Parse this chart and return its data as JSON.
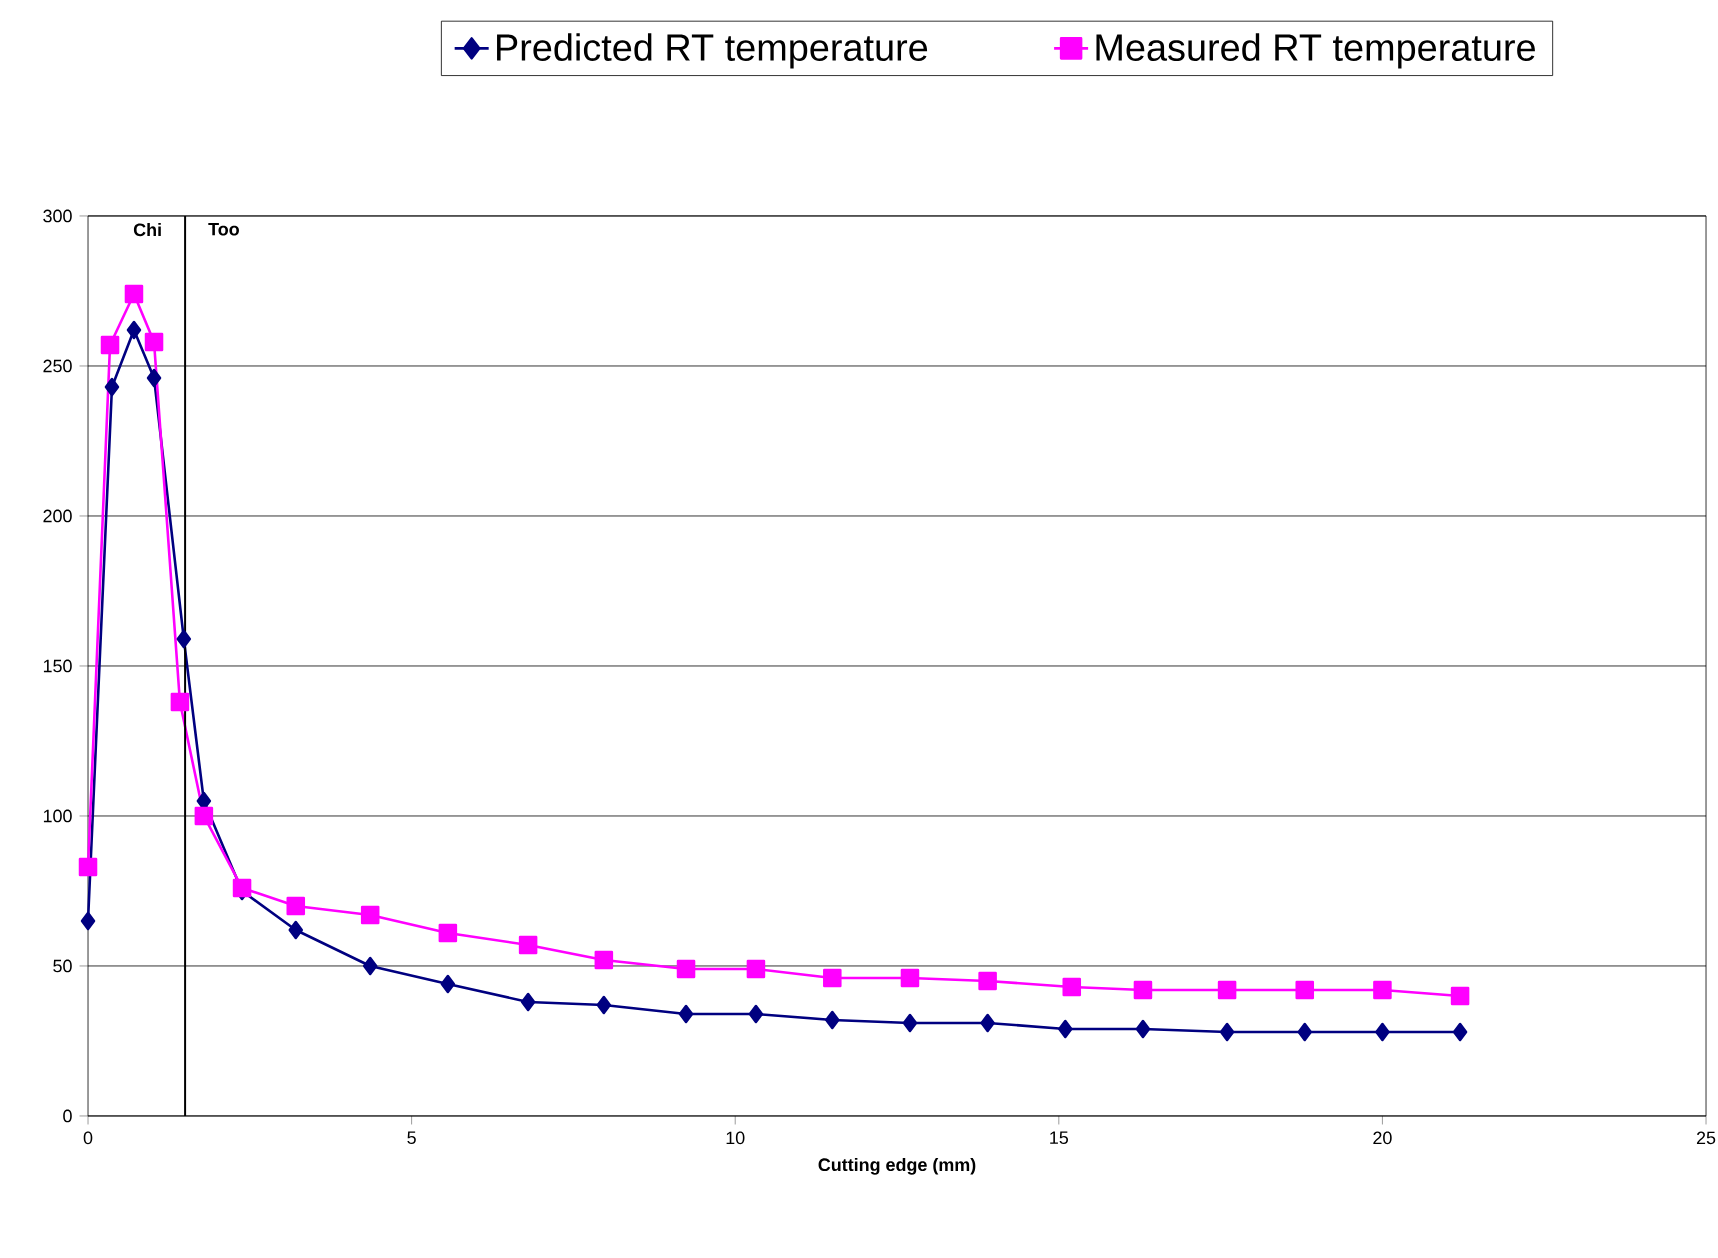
{
  "chart_data": {
    "type": "line",
    "xlabel": "Cutting edge (mm)",
    "xlim": [
      0,
      25
    ],
    "xticks": [
      0,
      5,
      10,
      15,
      20,
      25
    ],
    "ylim": [
      0,
      300
    ],
    "yticks": [
      0,
      50,
      100,
      150,
      200,
      250,
      300
    ],
    "grid": "y",
    "legend": "top",
    "annotations": [
      "Chi",
      "Too"
    ],
    "ref_lines": [
      {
        "axis": "x",
        "value": 1.5,
        "color": "#000000"
      }
    ],
    "series": [
      {
        "name": "Predicted RT temperature",
        "color": "#000080",
        "marker": "diamond",
        "x": [
          0,
          0.37,
          0.71,
          1.02,
          1.48,
          1.79,
          2.38,
          3.21,
          4.36,
          5.56,
          6.8,
          7.97,
          9.24,
          10.32,
          11.5,
          12.7,
          13.9,
          15.1,
          16.3,
          17.6,
          18.8,
          20.0,
          21.2
        ],
        "values": [
          65,
          243,
          262,
          246,
          159,
          105,
          75,
          62,
          50,
          44,
          38,
          37,
          34,
          34,
          32,
          31,
          31,
          29,
          29,
          28,
          28,
          28,
          28
        ]
      },
      {
        "name": "Measured RT temperature",
        "color": "#ff00ff",
        "marker": "square",
        "x": [
          0,
          0.34,
          0.71,
          1.02,
          1.42,
          1.79,
          2.38,
          3.21,
          4.36,
          5.56,
          6.8,
          7.97,
          9.24,
          10.32,
          11.5,
          12.7,
          13.9,
          15.2,
          16.3,
          17.6,
          18.8,
          20.0,
          21.2
        ],
        "values": [
          83,
          257,
          274,
          258,
          138,
          100,
          76,
          70,
          67,
          61,
          57,
          52,
          49,
          49,
          46,
          46,
          45,
          43,
          42,
          42,
          42,
          42,
          40
        ]
      }
    ]
  }
}
